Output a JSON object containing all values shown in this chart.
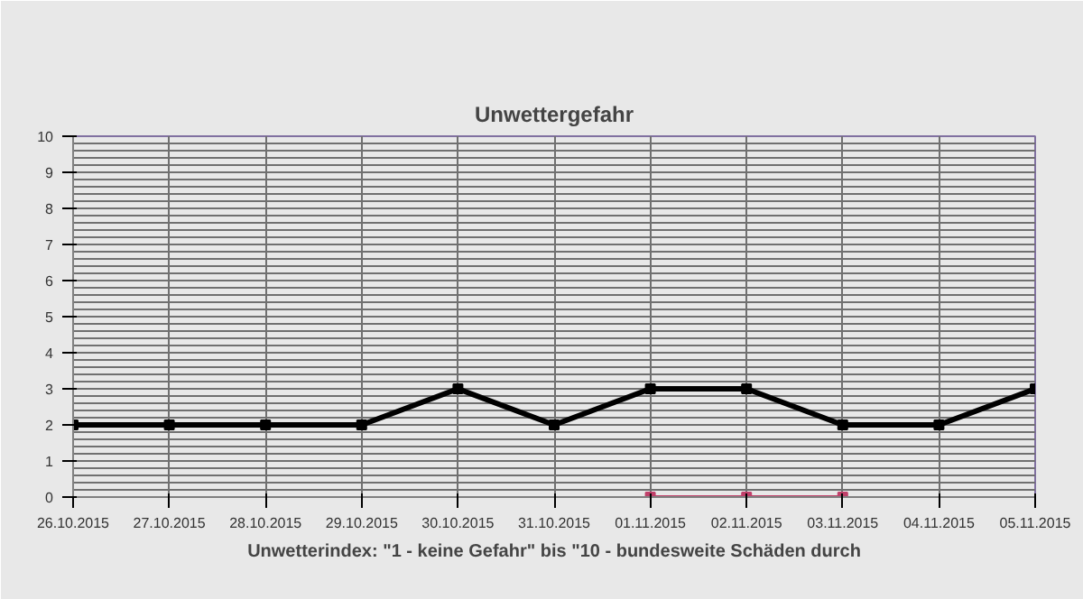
{
  "chart_data": {
    "type": "line",
    "title": "Unwettergefahr",
    "xlabel": "Unwetterindex: \"1 - keine Gefahr\" bis \"10 - bundesweite Schäden durch",
    "categories": [
      "26.10.2015",
      "27.10.2015",
      "28.10.2015",
      "29.10.2015",
      "30.10.2015",
      "31.10.2015",
      "01.11.2015",
      "02.11.2015",
      "03.11.2015",
      "04.11.2015",
      "05.11.2015"
    ],
    "series": [
      {
        "color": "#000000",
        "values": [
          2,
          2,
          2,
          2,
          3,
          2,
          3,
          3,
          2,
          2,
          3
        ]
      },
      {
        "color": "#c0406a",
        "values": [
          null,
          null,
          null,
          null,
          null,
          null,
          0,
          0,
          0,
          null,
          null
        ]
      }
    ],
    "ylim": [
      0,
      10
    ],
    "yticks": [
      0,
      1,
      2,
      3,
      4,
      5,
      6,
      7,
      8,
      9,
      10
    ],
    "grid": true,
    "marker": "square",
    "line_style": "solid"
  }
}
